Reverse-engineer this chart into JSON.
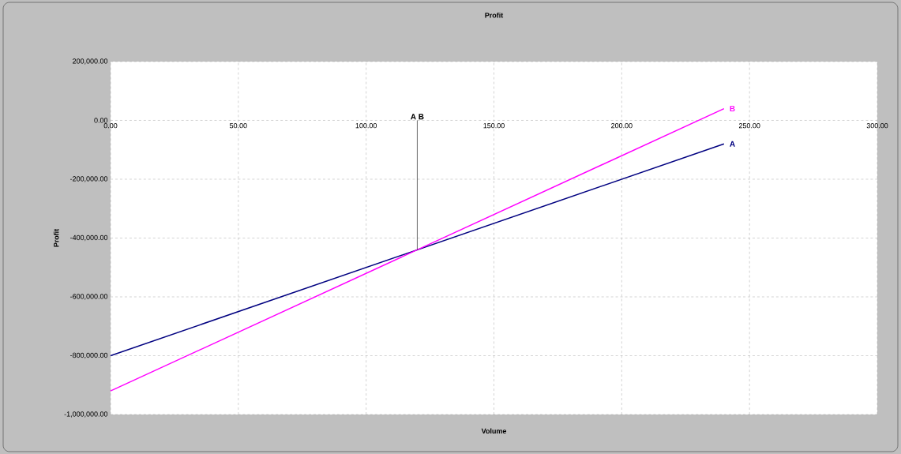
{
  "chart_data": {
    "type": "line",
    "title": "Profit",
    "xlabel": "Volume",
    "ylabel": "Profit",
    "xlim": [
      0,
      300
    ],
    "ylim": [
      -1000000,
      200000
    ],
    "xticks": [
      {
        "value": 0,
        "label": "0.00"
      },
      {
        "value": 50,
        "label": "50.00"
      },
      {
        "value": 100,
        "label": "100.00"
      },
      {
        "value": 150,
        "label": "150.00"
      },
      {
        "value": 200,
        "label": "200.00"
      },
      {
        "value": 250,
        "label": "250.00"
      },
      {
        "value": 300,
        "label": "300.00"
      }
    ],
    "yticks": [
      {
        "value": -1000000,
        "label": "-1,000,000.00"
      },
      {
        "value": -800000,
        "label": "-800,000.00"
      },
      {
        "value": -600000,
        "label": "-600,000.00"
      },
      {
        "value": -400000,
        "label": "-400,000.00"
      },
      {
        "value": -200000,
        "label": "-200,000.00"
      },
      {
        "value": 0,
        "label": "0.00"
      },
      {
        "value": 200000,
        "label": "200,000.00"
      }
    ],
    "grid": true,
    "series": [
      {
        "name": "A",
        "color": "#000080",
        "x": [
          0,
          240
        ],
        "values": [
          -800000,
          -80000
        ]
      },
      {
        "name": "B",
        "color": "#ff00ff",
        "x": [
          0,
          240
        ],
        "values": [
          -920000,
          40000
        ]
      },
      {
        "name": "A B",
        "color": "#000000",
        "x": [
          120,
          120
        ],
        "values": [
          0,
          -440000
        ]
      }
    ]
  }
}
